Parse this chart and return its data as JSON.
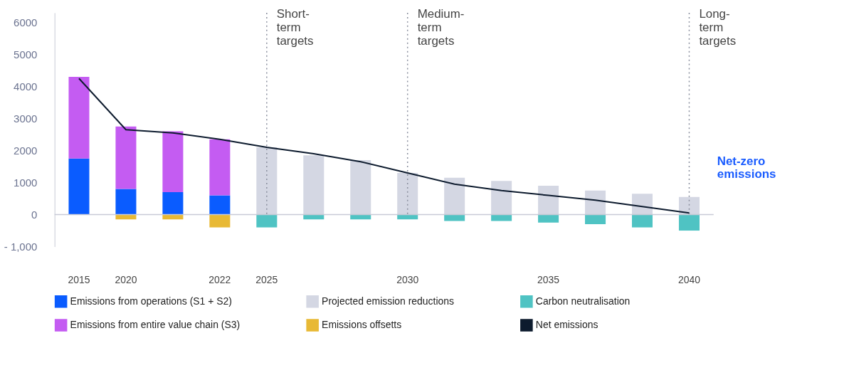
{
  "chart_data": {
    "type": "bar",
    "stacked": true,
    "categories": [
      "2015",
      "2020",
      null,
      "2022",
      "2025",
      null,
      null,
      "2030",
      null,
      null,
      "2035",
      null,
      null,
      "2040"
    ],
    "series": [
      {
        "name": "Emissions from operations (S1 + S2)",
        "color": "#0a5cff",
        "values": [
          1750,
          800,
          700,
          600,
          null,
          null,
          null,
          null,
          null,
          null,
          null,
          null,
          null,
          null
        ]
      },
      {
        "name": "Emissions from entire value chain (S3)",
        "color": "#c45cf2",
        "values": [
          2550,
          1950,
          1900,
          1750,
          null,
          null,
          null,
          null,
          null,
          null,
          null,
          null,
          null,
          null
        ]
      },
      {
        "name": "Projected emission reductions",
        "color": "#d4d7e3",
        "values": [
          null,
          null,
          null,
          null,
          2100,
          1850,
          1700,
          1300,
          1150,
          1050,
          900,
          750,
          650,
          550
        ]
      },
      {
        "name": "Emissions offsetts",
        "color": "#e8b935",
        "values": [
          null,
          -150,
          -150,
          -400,
          null,
          null,
          null,
          null,
          null,
          null,
          null,
          null,
          null,
          null
        ]
      },
      {
        "name": "Carbon neutralisation",
        "color": "#4fc3c3",
        "values": [
          null,
          null,
          null,
          null,
          -400,
          -150,
          -150,
          -150,
          -200,
          -200,
          -250,
          -300,
          -400,
          -500
        ]
      },
      {
        "name": "Net emissions",
        "color": "#0d1b2e",
        "type": "line",
        "values": [
          4250,
          2650,
          2550,
          2350,
          2100,
          1900,
          1650,
          1300,
          950,
          750,
          600,
          450,
          250,
          50
        ]
      }
    ],
    "ylim": [
      -1000,
      6300
    ],
    "yticks": [
      {
        "value": -1000,
        "label": "- 1,000"
      },
      0,
      1000,
      2000,
      3000,
      4000,
      5000,
      6000
    ],
    "ref_lines": [
      {
        "axis": "y",
        "value": 0,
        "color": "#c8cad6"
      },
      {
        "axis": "x",
        "value": "2025",
        "label": "Short-\nterm\ntargets",
        "color": "#8a8f9e",
        "line_style": "dotted"
      },
      {
        "axis": "x",
        "value": "2030",
        "label": "Medium-\nterm\ntargets",
        "color": "#8a8f9e",
        "line_style": "dotted"
      },
      {
        "axis": "x",
        "value": "2040",
        "label": "Long-\nterm\ntargets",
        "color": "#8a8f9e",
        "line_style": "dotted"
      }
    ],
    "annotations": [
      "Net-zero\nemissions"
    ],
    "grid": false,
    "legend": "bottom"
  }
}
